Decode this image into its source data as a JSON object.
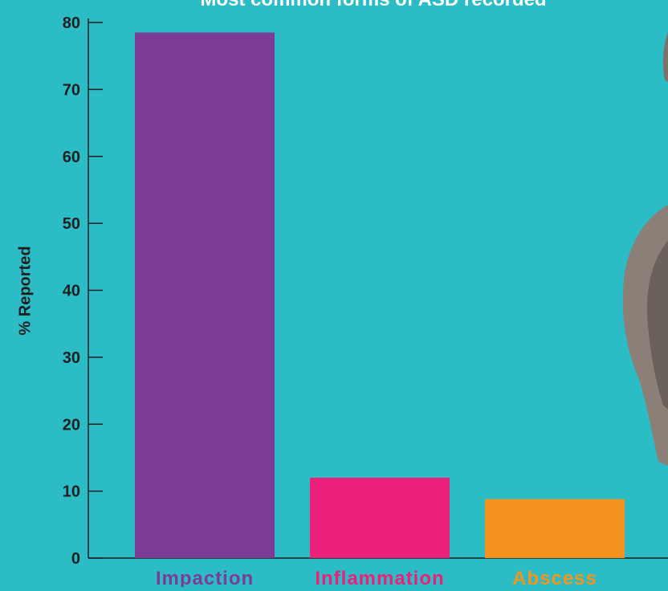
{
  "chart_data": {
    "type": "bar",
    "title": "Most common forms of ASD recorded",
    "xlabel": "",
    "ylabel": "% Reported",
    "categories": [
      "Impaction",
      "Inflammation",
      "Abscess"
    ],
    "values": [
      78.5,
      12,
      8.8
    ],
    "colors": [
      "#7b3c96",
      "#ec1f7a",
      "#f5931f"
    ],
    "ylim": [
      0,
      80
    ],
    "yticks": [
      "0",
      "10",
      "20",
      "30",
      "40",
      "50",
      "60",
      "70",
      "80"
    ],
    "grid": false,
    "legend": "none"
  }
}
